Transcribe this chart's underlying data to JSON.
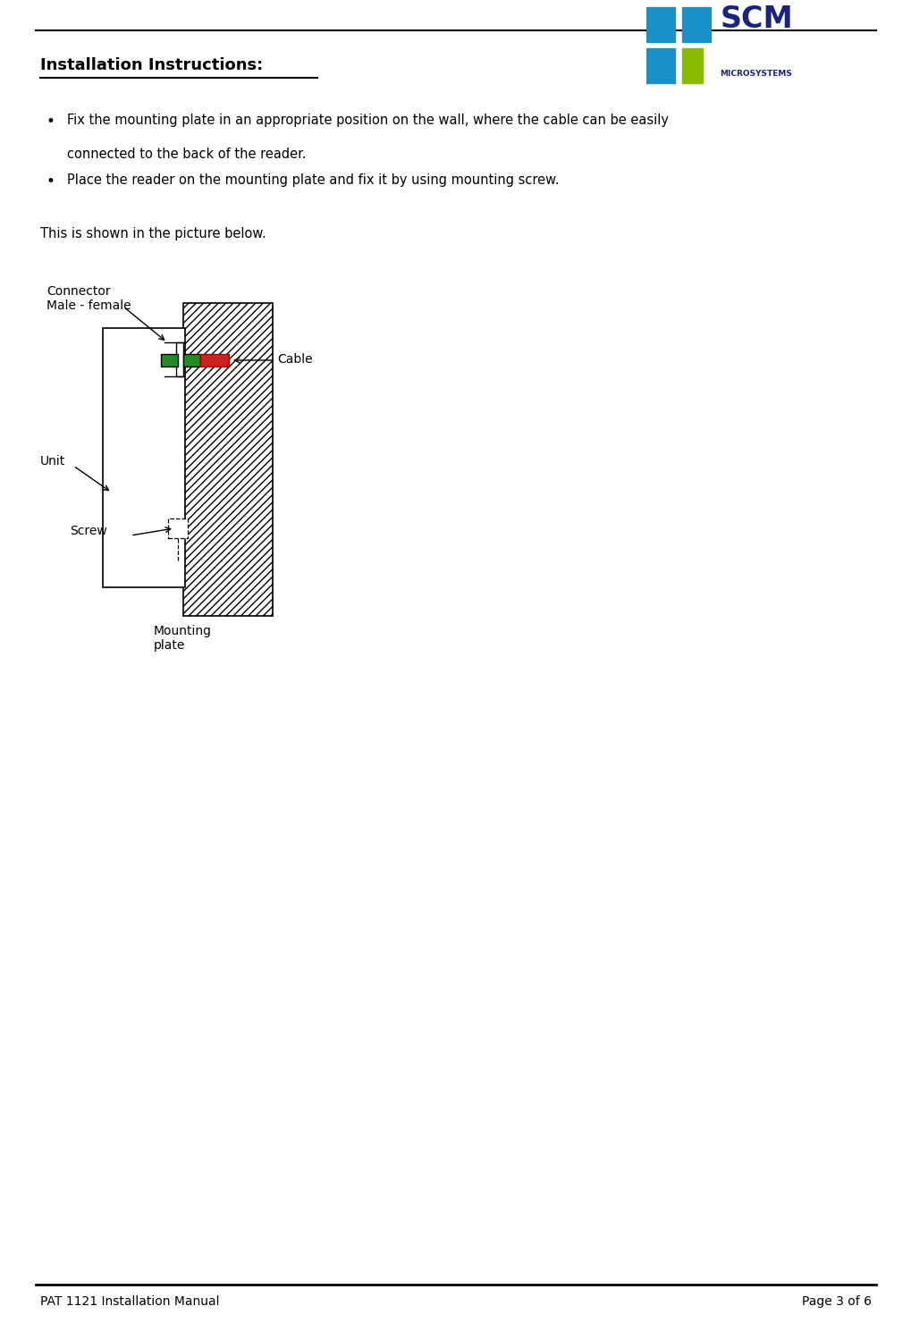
{
  "title": "Installation Instructions:",
  "bullet1_line1": "Fix the mounting plate in an appropriate position on the wall, where the cable can be easily",
  "bullet1_line2": "connected to the back of the reader.",
  "bullet2": "Place the reader on the mounting plate and fix it by using mounting screw.",
  "caption": "This is shown in the picture below.",
  "label_connector": "Connector\nMale - female",
  "label_unit": "Unit",
  "label_screw": "Screw",
  "label_mounting": "Mounting\nplate",
  "label_cable": "Cable",
  "footer_left": "PAT 1121 Installation Manual",
  "footer_right": "Page 3 of 6",
  "bg_color": "#ffffff",
  "text_color": "#000000",
  "green_color": "#228B22",
  "red_color": "#cc2222",
  "scm_blue": "#1a237e",
  "scm_cyan": "#1890c8",
  "scm_green": "#88bb00"
}
